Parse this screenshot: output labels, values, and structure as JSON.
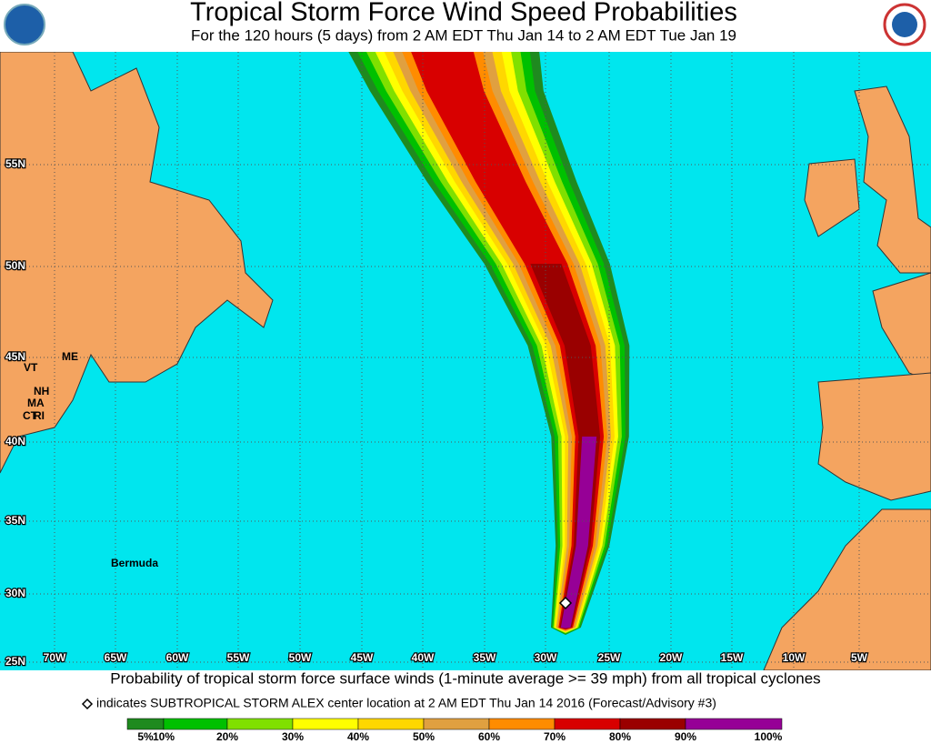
{
  "header": {
    "title": "Tropical Storm Force Wind Speed Probabilities",
    "subtitle": "For the 120 hours (5 days) from 2 AM EDT Thu Jan 14 to 2 AM EDT Tue Jan 19"
  },
  "map": {
    "latitude_labels": [
      "55N",
      "50N",
      "45N",
      "40N",
      "35N",
      "30N",
      "25N"
    ],
    "longitude_labels": [
      "70W",
      "65W",
      "60W",
      "55W",
      "50W",
      "45W",
      "40W",
      "35W",
      "30W",
      "25W",
      "20W",
      "15W",
      "10W",
      "5W"
    ],
    "place_labels": [
      "ME",
      "VT",
      "NH",
      "MA",
      "CT",
      "RI",
      "Bermuda"
    ]
  },
  "caption": "Probability of tropical storm force surface winds (1-minute average >= 39 mph) from all tropical cyclones",
  "note": "indicates SUBTROPICAL STORM ALEX center location at 2 AM EDT Thu Jan 14 2016 (Forecast/Advisory #3)",
  "legend": {
    "labels": [
      "5%",
      "10%",
      "20%",
      "30%",
      "40%",
      "50%",
      "60%",
      "70%",
      "80%",
      "90%",
      "100%"
    ],
    "colors": [
      "#1f8a1f",
      "#00c000",
      "#80e000",
      "#ffff00",
      "#ffd700",
      "#e0a040",
      "#ff8c00",
      "#d80000",
      "#9a0000",
      "#960096"
    ]
  }
}
